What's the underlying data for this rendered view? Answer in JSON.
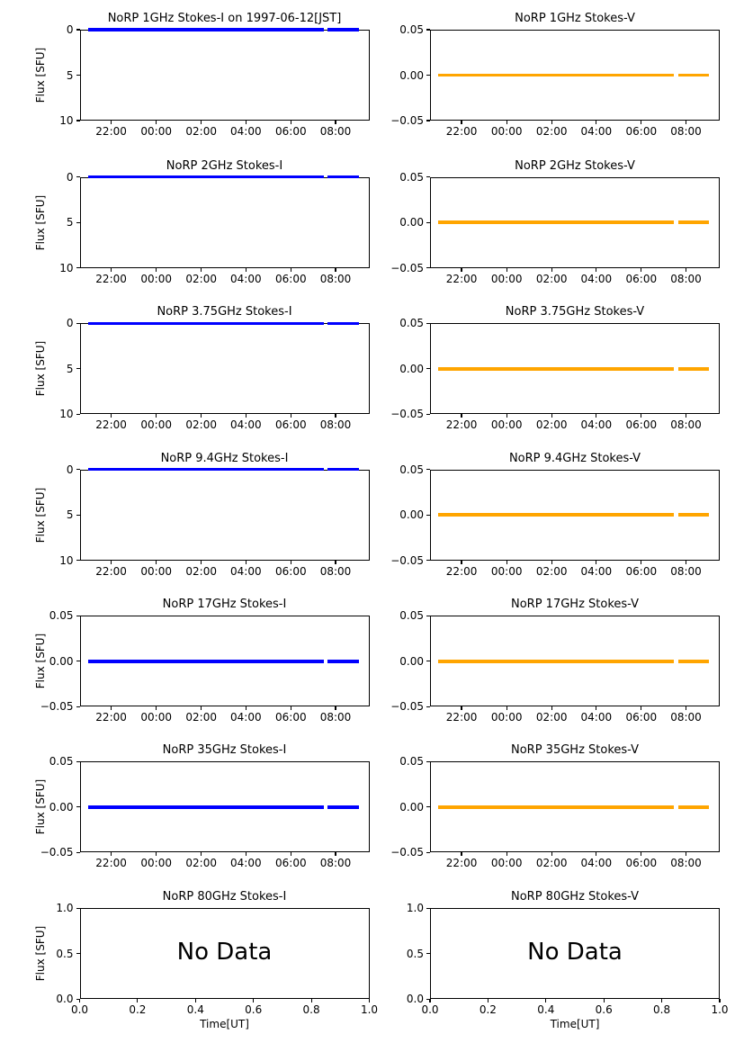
{
  "chart_data": {
    "type": "line",
    "layout": "7 rows x 2 columns of subplots",
    "columns": [
      "Stokes-I",
      "Stokes-V"
    ],
    "frequencies": [
      "1GHz",
      "2GHz",
      "3.75GHz",
      "9.4GHz",
      "17GHz",
      "35GHz",
      "80GHz"
    ],
    "colors": {
      "stokes_i_line": "#0000ff",
      "stokes_v_line": "#ffa500",
      "axes": "#000000",
      "text": "#000000",
      "background": "#ffffff"
    },
    "xticks_time": [
      "22:00",
      "00:00",
      "02:00",
      "04:00",
      "06:00",
      "08:00"
    ],
    "xticks_unit": [
      "0.0",
      "0.2",
      "0.4",
      "0.6",
      "0.8",
      "1.0"
    ],
    "data_line": {
      "value": 0,
      "x_start": "≈21:00",
      "x_end": "≈09:05",
      "gap_near": "≈07:30",
      "description": "Flux is constant at 0 SFU over the whole observing window with a short data gap near 07:30; 80GHz panels contain no data."
    },
    "panels": [
      {
        "id": "norp-1ghz-stokes-i",
        "frequency": "1GHz",
        "stokes": "I",
        "title": "NoRP 1GHz Stokes-I on 1997-06-12[JST]",
        "ylabel": "Flux [SFU]",
        "yticks": [
          "0",
          "5",
          "10"
        ],
        "ylim": [
          0,
          10
        ],
        "y_inverted": true,
        "xticks_ref": "time",
        "xlabel": null,
        "line": {
          "color": "#0000ff",
          "at": "top",
          "value": 0
        },
        "no_data": null
      },
      {
        "id": "norp-1ghz-stokes-v",
        "frequency": "1GHz",
        "stokes": "V",
        "title": "NoRP 1GHz Stokes-V",
        "ylabel": null,
        "yticks": [
          "0.05",
          "0.00",
          "−0.05"
        ],
        "ylim": [
          -0.05,
          0.05
        ],
        "y_inverted": false,
        "xticks_ref": "time",
        "xlabel": null,
        "line": {
          "color": "#ffa500",
          "at": "middle",
          "value": 0
        },
        "no_data": null
      },
      {
        "id": "norp-2ghz-stokes-i",
        "frequency": "2GHz",
        "stokes": "I",
        "title": "NoRP 2GHz Stokes-I",
        "ylabel": "Flux [SFU]",
        "yticks": [
          "0",
          "5",
          "10"
        ],
        "ylim": [
          0,
          10
        ],
        "y_inverted": true,
        "xticks_ref": "time",
        "xlabel": null,
        "line": {
          "color": "#0000ff",
          "at": "top",
          "value": 0
        },
        "no_data": null
      },
      {
        "id": "norp-2ghz-stokes-v",
        "frequency": "2GHz",
        "stokes": "V",
        "title": "NoRP 2GHz Stokes-V",
        "ylabel": null,
        "yticks": [
          "0.05",
          "0.00",
          "−0.05"
        ],
        "ylim": [
          -0.05,
          0.05
        ],
        "y_inverted": false,
        "xticks_ref": "time",
        "xlabel": null,
        "line": {
          "color": "#ffa500",
          "at": "middle",
          "value": 0
        },
        "no_data": null
      },
      {
        "id": "norp-3.75ghz-stokes-i",
        "frequency": "3.75GHz",
        "stokes": "I",
        "title": "NoRP 3.75GHz Stokes-I",
        "ylabel": "Flux [SFU]",
        "yticks": [
          "0",
          "5",
          "10"
        ],
        "ylim": [
          0,
          10
        ],
        "y_inverted": true,
        "xticks_ref": "time",
        "xlabel": null,
        "line": {
          "color": "#0000ff",
          "at": "top",
          "value": 0
        },
        "no_data": null
      },
      {
        "id": "norp-3.75ghz-stokes-v",
        "frequency": "3.75GHz",
        "stokes": "V",
        "title": "NoRP 3.75GHz Stokes-V",
        "ylabel": null,
        "yticks": [
          "0.05",
          "0.00",
          "−0.05"
        ],
        "ylim": [
          -0.05,
          0.05
        ],
        "y_inverted": false,
        "xticks_ref": "time",
        "xlabel": null,
        "line": {
          "color": "#ffa500",
          "at": "middle",
          "value": 0
        },
        "no_data": null
      },
      {
        "id": "norp-9.4ghz-stokes-i",
        "frequency": "9.4GHz",
        "stokes": "I",
        "title": "NoRP 9.4GHz Stokes-I",
        "ylabel": "Flux [SFU]",
        "yticks": [
          "0",
          "5",
          "10"
        ],
        "ylim": [
          0,
          10
        ],
        "y_inverted": true,
        "xticks_ref": "time",
        "xlabel": null,
        "line": {
          "color": "#0000ff",
          "at": "top",
          "value": 0
        },
        "no_data": null
      },
      {
        "id": "norp-9.4ghz-stokes-v",
        "frequency": "9.4GHz",
        "stokes": "V",
        "title": "NoRP 9.4GHz Stokes-V",
        "ylabel": null,
        "yticks": [
          "0.05",
          "0.00",
          "−0.05"
        ],
        "ylim": [
          -0.05,
          0.05
        ],
        "y_inverted": false,
        "xticks_ref": "time",
        "xlabel": null,
        "line": {
          "color": "#ffa500",
          "at": "middle",
          "value": 0
        },
        "no_data": null
      },
      {
        "id": "norp-17ghz-stokes-i",
        "frequency": "17GHz",
        "stokes": "I",
        "title": "NoRP 17GHz Stokes-I",
        "ylabel": "Flux [SFU]",
        "yticks": [
          "0.05",
          "0.00",
          "−0.05"
        ],
        "ylim": [
          -0.05,
          0.05
        ],
        "y_inverted": false,
        "xticks_ref": "time",
        "xlabel": null,
        "line": {
          "color": "#0000ff",
          "at": "middle",
          "value": 0
        },
        "no_data": null
      },
      {
        "id": "norp-17ghz-stokes-v",
        "frequency": "17GHz",
        "stokes": "V",
        "title": "NoRP 17GHz Stokes-V",
        "ylabel": null,
        "yticks": [
          "0.05",
          "0.00",
          "−0.05"
        ],
        "ylim": [
          -0.05,
          0.05
        ],
        "y_inverted": false,
        "xticks_ref": "time",
        "xlabel": null,
        "line": {
          "color": "#ffa500",
          "at": "middle",
          "value": 0
        },
        "no_data": null
      },
      {
        "id": "norp-35ghz-stokes-i",
        "frequency": "35GHz",
        "stokes": "I",
        "title": "NoRP 35GHz Stokes-I",
        "ylabel": "Flux [SFU]",
        "yticks": [
          "0.05",
          "0.00",
          "−0.05"
        ],
        "ylim": [
          -0.05,
          0.05
        ],
        "y_inverted": false,
        "xticks_ref": "time",
        "xlabel": null,
        "line": {
          "color": "#0000ff",
          "at": "middle",
          "value": 0
        },
        "no_data": null
      },
      {
        "id": "norp-35ghz-stokes-v",
        "frequency": "35GHz",
        "stokes": "V",
        "title": "NoRP 35GHz Stokes-V",
        "ylabel": null,
        "yticks": [
          "0.05",
          "0.00",
          "−0.05"
        ],
        "ylim": [
          -0.05,
          0.05
        ],
        "y_inverted": false,
        "xticks_ref": "time",
        "xlabel": null,
        "line": {
          "color": "#ffa500",
          "at": "middle",
          "value": 0
        },
        "no_data": null
      },
      {
        "id": "norp-80ghz-stokes-i",
        "frequency": "80GHz",
        "stokes": "I",
        "title": "NoRP 80GHz Stokes-I",
        "ylabel": "Flux [SFU]",
        "yticks": [
          "1.0",
          "0.5",
          "0.0"
        ],
        "ylim": [
          0,
          1
        ],
        "y_inverted": false,
        "xticks_ref": "unit",
        "xlabel": "Time[UT]",
        "line": null,
        "no_data": "No Data"
      },
      {
        "id": "norp-80ghz-stokes-v",
        "frequency": "80GHz",
        "stokes": "V",
        "title": "NoRP 80GHz Stokes-V",
        "ylabel": null,
        "yticks": [
          "1.0",
          "0.5",
          "0.0"
        ],
        "ylim": [
          0,
          1
        ],
        "y_inverted": false,
        "xticks_ref": "unit",
        "xlabel": "Time[UT]",
        "line": null,
        "no_data": "No Data"
      }
    ]
  }
}
